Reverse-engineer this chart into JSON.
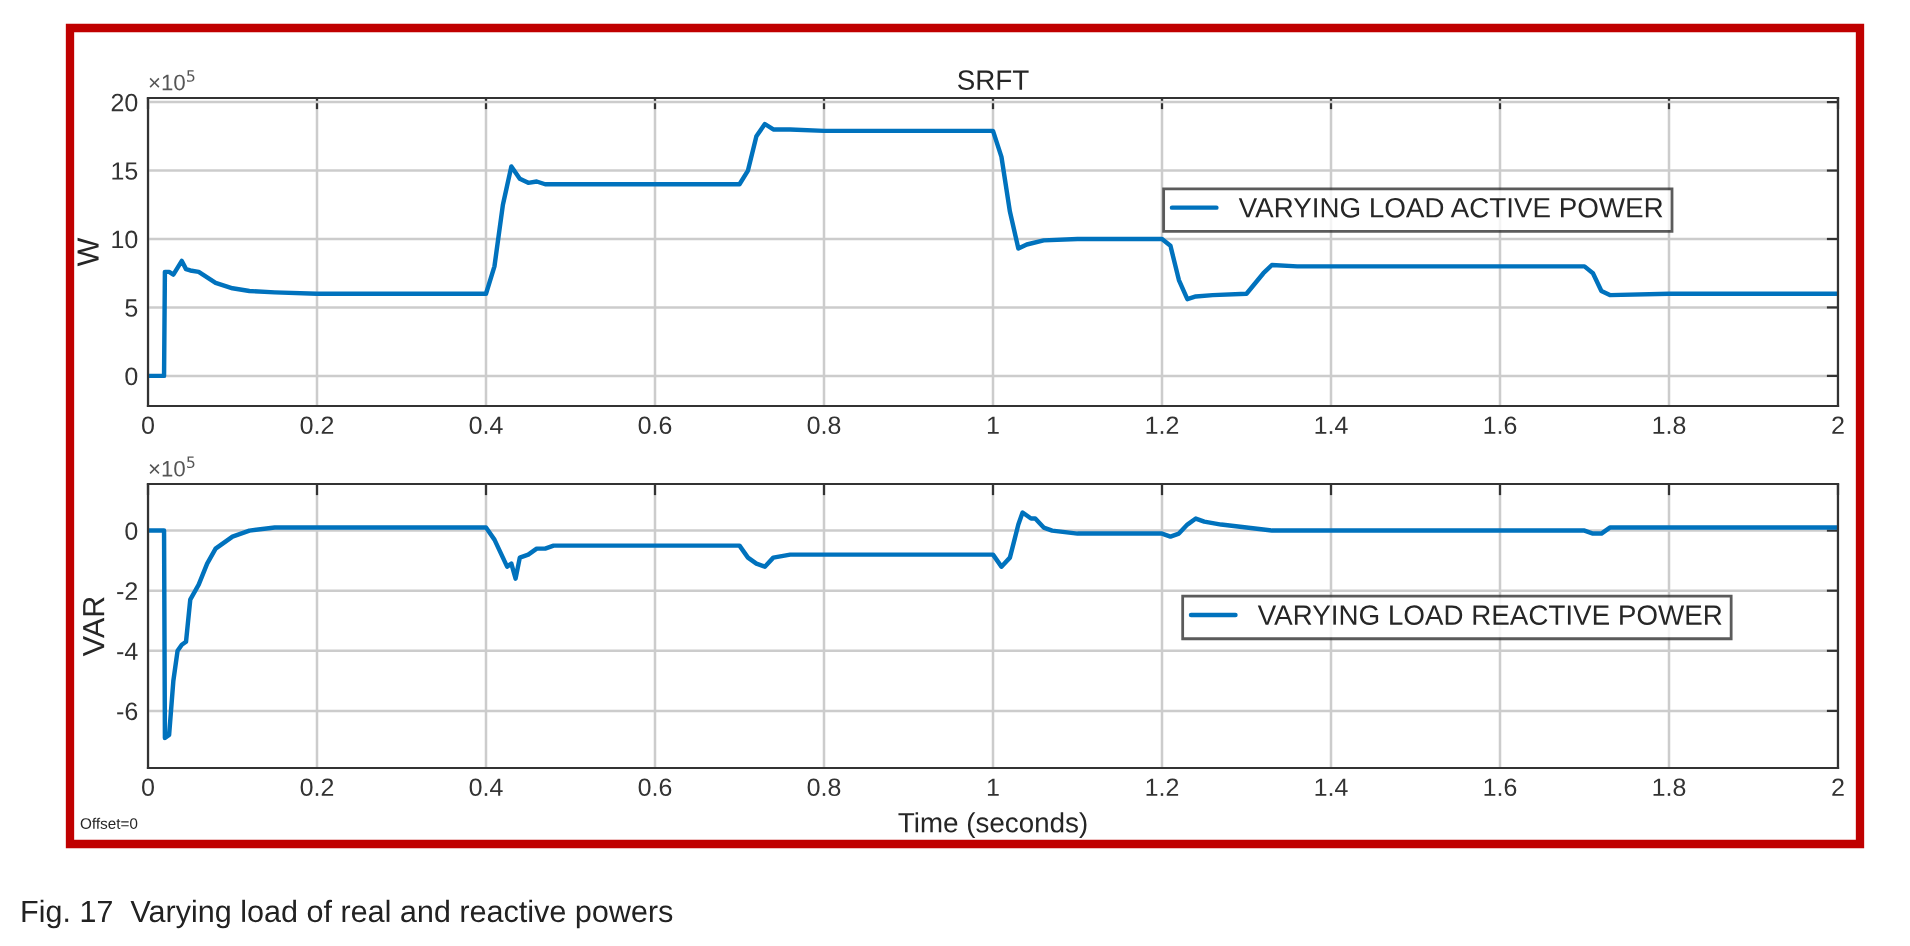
{
  "chart_data": [
    {
      "type": "line",
      "title": "SRFT",
      "ylabel": "W",
      "annotations": [
        "×10$^{5}$"
      ],
      "xlim": [
        0,
        2
      ],
      "xticks": [
        0,
        0.2,
        0.4,
        0.6,
        0.8,
        1,
        1.2,
        1.4,
        1.6,
        1.8,
        2
      ],
      "ylim": [
        -2.2,
        20.3
      ],
      "yticks": [
        0,
        5,
        10,
        15,
        20
      ],
      "grid": true,
      "legend": "top right",
      "series": [
        {
          "name": "VARYING LOAD ACTIVE POWER",
          "color": "#0072bd",
          "x": [
            0,
            0.019,
            0.02,
            0.025,
            0.03,
            0.04,
            0.045,
            0.05,
            0.06,
            0.08,
            0.1,
            0.12,
            0.15,
            0.2,
            0.4,
            0.41,
            0.42,
            0.43,
            0.44,
            0.45,
            0.46,
            0.47,
            0.5,
            0.7,
            0.71,
            0.72,
            0.73,
            0.74,
            0.76,
            0.8,
            1.0,
            1.01,
            1.02,
            1.03,
            1.04,
            1.06,
            1.1,
            1.2,
            1.21,
            1.22,
            1.23,
            1.24,
            1.26,
            1.3,
            1.32,
            1.33,
            1.36,
            1.7,
            1.71,
            1.72,
            1.73,
            1.8,
            2.0
          ],
          "values": [
            0,
            0,
            7.6,
            7.6,
            7.4,
            8.4,
            7.8,
            7.7,
            7.6,
            6.8,
            6.4,
            6.2,
            6.1,
            6.0,
            6.0,
            8,
            12.5,
            15.3,
            14.4,
            14.1,
            14.2,
            14.0,
            14.0,
            14.0,
            15,
            17.5,
            18.4,
            18.0,
            18.0,
            17.9,
            17.9,
            16,
            12,
            9.3,
            9.6,
            9.9,
            10.0,
            10.0,
            9.5,
            7,
            5.6,
            5.8,
            5.9,
            6.0,
            7.5,
            8.1,
            8.0,
            8.0,
            7.5,
            6.2,
            5.9,
            6.0,
            6.0
          ]
        }
      ]
    },
    {
      "type": "line",
      "ylabel": "VAR",
      "xlabel": "Time (seconds)",
      "annotations": [
        "×10$^{5}$",
        "Offset=0",
        "Fig. 17  Varying load of real and reactive powers"
      ],
      "xlim": [
        0,
        2
      ],
      "xticks": [
        0,
        0.2,
        0.4,
        0.6,
        0.8,
        1,
        1.2,
        1.4,
        1.6,
        1.8,
        2
      ],
      "ylim": [
        -7.9,
        1.55
      ],
      "yticks": [
        -6,
        -4,
        -2,
        0
      ],
      "grid": true,
      "legend": "right",
      "series": [
        {
          "name": "VARYING LOAD REACTIVE POWER",
          "color": "#0072bd",
          "x": [
            0,
            0.019,
            0.02,
            0.025,
            0.03,
            0.035,
            0.04,
            0.045,
            0.05,
            0.06,
            0.07,
            0.08,
            0.1,
            0.12,
            0.15,
            0.2,
            0.4,
            0.41,
            0.42,
            0.425,
            0.43,
            0.435,
            0.44,
            0.45,
            0.46,
            0.47,
            0.48,
            0.5,
            0.7,
            0.71,
            0.72,
            0.73,
            0.74,
            0.76,
            0.8,
            1.0,
            1.01,
            1.02,
            1.03,
            1.035,
            1.04,
            1.045,
            1.05,
            1.06,
            1.07,
            1.1,
            1.2,
            1.21,
            1.22,
            1.23,
            1.24,
            1.25,
            1.27,
            1.3,
            1.33,
            1.35,
            1.7,
            1.71,
            1.72,
            1.73,
            1.75,
            1.8,
            2.0
          ],
          "values": [
            0,
            0,
            -6.9,
            -6.8,
            -5,
            -4,
            -3.8,
            -3.7,
            -2.3,
            -1.8,
            -1.1,
            -0.6,
            -0.2,
            0.0,
            0.1,
            0.1,
            0.1,
            -0.3,
            -0.9,
            -1.2,
            -1.1,
            -1.6,
            -0.9,
            -0.8,
            -0.6,
            -0.6,
            -0.5,
            -0.5,
            -0.5,
            -0.9,
            -1.1,
            -1.2,
            -0.9,
            -0.8,
            -0.8,
            -0.8,
            -1.2,
            -0.9,
            0.2,
            0.6,
            0.5,
            0.4,
            0.4,
            0.1,
            0.0,
            -0.1,
            -0.1,
            -0.2,
            -0.1,
            0.2,
            0.4,
            0.3,
            0.2,
            0.1,
            0.0,
            0.0,
            0.0,
            -0.1,
            -0.1,
            0.1,
            0.1,
            0.1,
            0.1
          ]
        }
      ]
    }
  ]
}
